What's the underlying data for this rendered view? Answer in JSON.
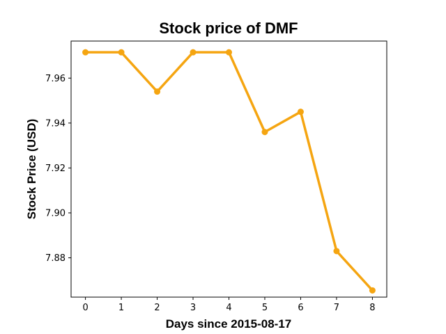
{
  "chart_data": {
    "type": "line",
    "title": "Stock price of DMF",
    "xlabel": "Days since 2015-08-17",
    "ylabel": "Stock Price (USD)",
    "x": [
      0,
      1,
      2,
      3,
      4,
      5,
      6,
      7,
      8
    ],
    "series": [
      {
        "values": [
          7.9715,
          7.9715,
          7.954,
          7.9715,
          7.9715,
          7.936,
          7.945,
          7.883,
          7.8655
        ],
        "color": "#f5a511"
      }
    ],
    "xlim": [
      -0.4,
      8.4
    ],
    "ylim": [
      7.8625,
      7.9765
    ],
    "xticks": [
      0,
      1,
      2,
      3,
      4,
      5,
      6,
      7,
      8
    ],
    "yticks": [
      7.88,
      7.9,
      7.92,
      7.94,
      7.96
    ],
    "ytick_labels": [
      "7.88",
      "7.90",
      "7.92",
      "7.94",
      "7.96"
    ],
    "grid": false,
    "legend": "none"
  }
}
